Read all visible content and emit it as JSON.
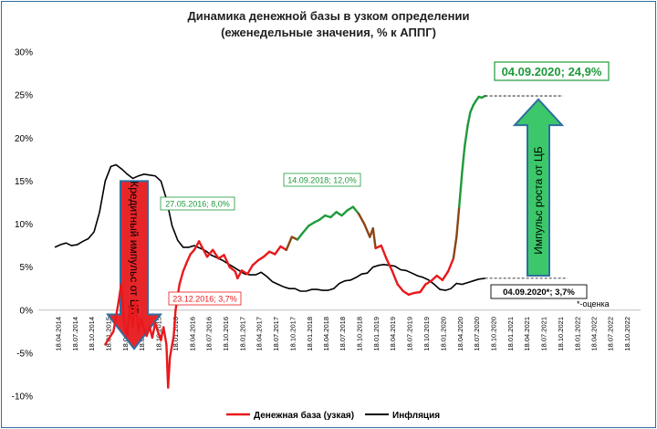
{
  "chart_data": {
    "type": "line",
    "title": "Динамика денежной базы в узком определении",
    "subtitle": "(еженедельные значения, % к АППГ)",
    "ylim": [
      -10,
      30
    ],
    "y_ticks": [
      "-10%",
      "-5%",
      "0%",
      "5%",
      "10%",
      "15%",
      "20%",
      "25%",
      "30%"
    ],
    "x_ticks": [
      "18.04.2014",
      "18.07.2014",
      "18.10.2014",
      "18.01.2015",
      "18.04.2015",
      "18.07.2015",
      "18.10.2015",
      "18.01.2016",
      "18.04.2016",
      "18.07.2016",
      "18.10.2016",
      "18.01.2017",
      "18.04.2017",
      "18.07.2017",
      "18.10.2017",
      "18.01.2018",
      "18.04.2018",
      "18.07.2018",
      "18.10.2018",
      "18.01.2019",
      "18.04.2019",
      "18.07.2019",
      "18.10.2019",
      "18.01.2020",
      "18.04.2020",
      "18.07.2020",
      "18.10.2020",
      "18.01.2021",
      "18.04.2021",
      "18.07.2021",
      "18.10.2021",
      "18.01.2022",
      "18.04.2022",
      "18.07.2022",
      "18.10.2022"
    ],
    "grid": false,
    "legend_position": "bottom",
    "series": [
      {
        "name": "Денежная база (узкая)",
        "color": "#e8191c",
        "points": [
          [
            "2015-01-01",
            -4.0
          ],
          [
            "2015-02-15",
            -2.5
          ],
          [
            "2015-03-15",
            1.0
          ],
          [
            "2015-03-29",
            3.0
          ],
          [
            "2015-04-15",
            -1.5
          ],
          [
            "2015-05-01",
            -3.0
          ],
          [
            "2015-05-15",
            0.5
          ],
          [
            "2015-06-01",
            -2.0
          ],
          [
            "2015-06-15",
            1.0
          ],
          [
            "2015-07-01",
            -2.5
          ],
          [
            "2015-07-15",
            -1.0
          ],
          [
            "2015-08-01",
            -2.2
          ],
          [
            "2015-08-15",
            -3.0
          ],
          [
            "2015-09-01",
            -2.0
          ],
          [
            "2015-09-15",
            -3.2
          ],
          [
            "2015-10-01",
            -1.5
          ],
          [
            "2015-10-15",
            -2.5
          ],
          [
            "2015-11-01",
            -3.5
          ],
          [
            "2015-11-15",
            -2.0
          ],
          [
            "2015-12-01",
            -4.0
          ],
          [
            "2015-12-10",
            -9.0
          ],
          [
            "2015-12-20",
            -5.5
          ],
          [
            "2016-01-10",
            -3.0
          ],
          [
            "2016-01-20",
            0.0
          ],
          [
            "2016-02-10",
            3.0
          ],
          [
            "2016-03-01",
            4.5
          ],
          [
            "2016-03-20",
            5.5
          ],
          [
            "2016-04-10",
            6.5
          ],
          [
            "2016-05-01",
            7.0
          ],
          [
            "2016-05-27",
            8.0
          ],
          [
            "2016-06-15",
            7.2
          ],
          [
            "2016-07-10",
            6.2
          ],
          [
            "2016-08-10",
            7.0
          ],
          [
            "2016-09-10",
            6.0
          ],
          [
            "2016-10-10",
            6.4
          ],
          [
            "2016-11-10",
            5.0
          ],
          [
            "2016-12-10",
            4.5
          ],
          [
            "2016-12-23",
            3.7
          ],
          [
            "2017-01-15",
            4.6
          ],
          [
            "2017-02-15",
            4.2
          ],
          [
            "2017-03-15",
            5.2
          ],
          [
            "2017-04-15",
            5.8
          ],
          [
            "2017-05-15",
            6.2
          ],
          [
            "2017-06-15",
            6.8
          ],
          [
            "2017-07-15",
            6.5
          ],
          [
            "2017-08-15",
            7.4
          ],
          [
            "2017-09-15",
            7.0
          ],
          [
            "2017-10-15",
            8.5
          ],
          [
            "2017-11-15",
            8.2
          ],
          [
            "2017-12-15",
            9.0
          ],
          [
            "2018-01-15",
            9.8
          ],
          [
            "2018-02-15",
            10.2
          ],
          [
            "2018-03-15",
            10.5
          ],
          [
            "2018-04-15",
            11.0
          ],
          [
            "2018-05-15",
            10.8
          ],
          [
            "2018-06-15",
            11.4
          ],
          [
            "2018-07-15",
            11.0
          ],
          [
            "2018-08-15",
            11.6
          ],
          [
            "2018-09-14",
            12.0
          ],
          [
            "2018-10-15",
            11.2
          ],
          [
            "2018-11-15",
            10.0
          ],
          [
            "2018-12-15",
            8.5
          ],
          [
            "2019-01-01",
            9.5
          ],
          [
            "2019-01-15",
            7.2
          ],
          [
            "2019-02-15",
            7.5
          ],
          [
            "2019-03-15",
            6.0
          ],
          [
            "2019-04-15",
            4.6
          ],
          [
            "2019-05-15",
            3.0
          ],
          [
            "2019-06-15",
            2.2
          ],
          [
            "2019-07-15",
            1.8
          ],
          [
            "2019-08-15",
            2.0
          ],
          [
            "2019-09-15",
            2.1
          ],
          [
            "2019-10-15",
            3.0
          ],
          [
            "2019-11-15",
            3.4
          ],
          [
            "2019-12-15",
            4.0
          ],
          [
            "2020-01-15",
            3.5
          ],
          [
            "2020-02-15",
            4.5
          ],
          [
            "2020-03-15",
            6.0
          ],
          [
            "2020-04-01",
            8.5
          ],
          [
            "2020-04-15",
            12.0
          ],
          [
            "2020-05-01",
            16.0
          ],
          [
            "2020-05-15",
            19.0
          ],
          [
            "2020-06-01",
            21.5
          ],
          [
            "2020-06-15",
            23.0
          ],
          [
            "2020-07-01",
            23.8
          ],
          [
            "2020-07-15",
            24.3
          ],
          [
            "2020-08-01",
            24.8
          ],
          [
            "2020-08-15",
            24.7
          ],
          [
            "2020-09-04",
            24.9
          ]
        ]
      },
      {
        "name": "Инфляция",
        "color": "#000000",
        "points": [
          [
            "2014-04-01",
            7.3
          ],
          [
            "2014-05-01",
            7.6
          ],
          [
            "2014-06-01",
            7.8
          ],
          [
            "2014-07-01",
            7.5
          ],
          [
            "2014-08-01",
            7.6
          ],
          [
            "2014-09-01",
            8.0
          ],
          [
            "2014-10-01",
            8.3
          ],
          [
            "2014-11-01",
            9.1
          ],
          [
            "2014-12-01",
            11.4
          ],
          [
            "2015-01-01",
            15.0
          ],
          [
            "2015-02-01",
            16.7
          ],
          [
            "2015-03-01",
            16.9
          ],
          [
            "2015-04-01",
            16.4
          ],
          [
            "2015-05-01",
            15.8
          ],
          [
            "2015-06-01",
            15.3
          ],
          [
            "2015-07-01",
            15.6
          ],
          [
            "2015-08-01",
            15.8
          ],
          [
            "2015-09-01",
            15.7
          ],
          [
            "2015-10-01",
            15.6
          ],
          [
            "2015-11-01",
            15.0
          ],
          [
            "2015-12-01",
            12.9
          ],
          [
            "2016-01-01",
            9.8
          ],
          [
            "2016-02-01",
            8.1
          ],
          [
            "2016-03-01",
            7.3
          ],
          [
            "2016-04-01",
            7.3
          ],
          [
            "2016-05-01",
            7.5
          ],
          [
            "2016-06-01",
            7.2
          ],
          [
            "2016-07-01",
            6.9
          ],
          [
            "2016-08-01",
            6.4
          ],
          [
            "2016-09-01",
            6.1
          ],
          [
            "2016-10-01",
            5.8
          ],
          [
            "2016-11-01",
            5.4
          ],
          [
            "2016-12-01",
            5.0
          ],
          [
            "2017-01-01",
            4.6
          ],
          [
            "2017-02-01",
            4.2
          ],
          [
            "2017-03-01",
            4.1
          ],
          [
            "2017-04-01",
            4.1
          ],
          [
            "2017-05-01",
            4.4
          ],
          [
            "2017-06-01",
            3.9
          ],
          [
            "2017-07-01",
            3.3
          ],
          [
            "2017-08-01",
            3.0
          ],
          [
            "2017-09-01",
            2.7
          ],
          [
            "2017-10-01",
            2.5
          ],
          [
            "2017-11-01",
            2.5
          ],
          [
            "2017-12-01",
            2.2
          ],
          [
            "2018-01-01",
            2.2
          ],
          [
            "2018-02-01",
            2.4
          ],
          [
            "2018-03-01",
            2.4
          ],
          [
            "2018-04-01",
            2.3
          ],
          [
            "2018-05-01",
            2.3
          ],
          [
            "2018-06-01",
            2.5
          ],
          [
            "2018-07-01",
            3.1
          ],
          [
            "2018-08-01",
            3.4
          ],
          [
            "2018-09-01",
            3.5
          ],
          [
            "2018-10-01",
            3.8
          ],
          [
            "2018-11-01",
            4.2
          ],
          [
            "2018-12-01",
            4.3
          ],
          [
            "2019-01-01",
            5.0
          ],
          [
            "2019-02-01",
            5.2
          ],
          [
            "2019-03-01",
            5.3
          ],
          [
            "2019-04-01",
            5.2
          ],
          [
            "2019-05-01",
            5.1
          ],
          [
            "2019-06-01",
            4.7
          ],
          [
            "2019-07-01",
            4.6
          ],
          [
            "2019-08-01",
            4.3
          ],
          [
            "2019-09-01",
            4.0
          ],
          [
            "2019-10-01",
            3.8
          ],
          [
            "2019-11-01",
            3.5
          ],
          [
            "2019-12-01",
            3.0
          ],
          [
            "2020-01-01",
            2.4
          ],
          [
            "2020-02-01",
            2.3
          ],
          [
            "2020-03-01",
            2.5
          ],
          [
            "2020-04-01",
            3.1
          ],
          [
            "2020-05-01",
            3.0
          ],
          [
            "2020-06-01",
            3.2
          ],
          [
            "2020-07-01",
            3.4
          ],
          [
            "2020-08-01",
            3.6
          ],
          [
            "2020-09-04",
            3.7
          ]
        ]
      }
    ],
    "segment_colors": {
      "red": "#e8191c",
      "brown": "#8b4513",
      "green": "#1e9a3a"
    },
    "arrow_colors": {
      "down_fill": "#e8262a",
      "up_fill": "#3cc86a",
      "outline": "#2e6e9e"
    },
    "annotations": {
      "peak_2016": "27.05.2016; 8,0%",
      "low_2016": "23.12.2016; 3,7%",
      "peak_2018": "14.09.2018; 12,0%",
      "peak_2020": "04.09.2020; 24,9%",
      "inflation_2020": "04.09.2020*; 3,7%",
      "estimate_note": "*-оценка",
      "arrow_down": "Кредитный импульс от ЦБ",
      "arrow_up": "Импульс роста от ЦБ"
    }
  }
}
